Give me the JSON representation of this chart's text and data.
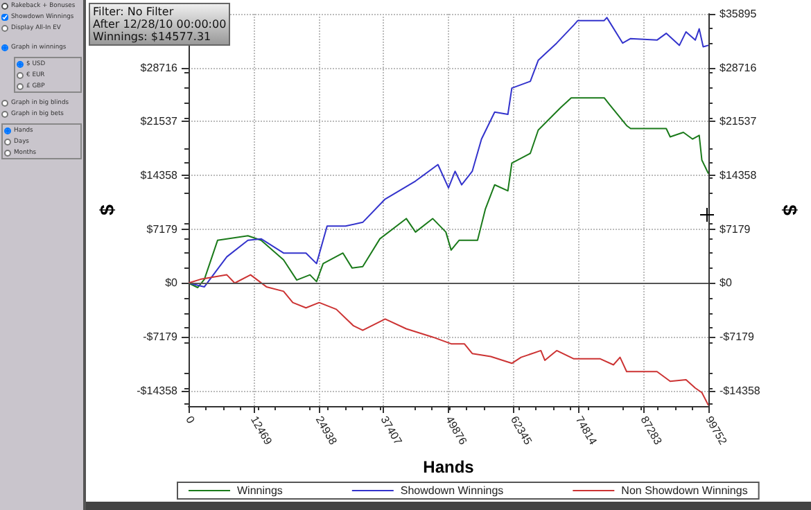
{
  "chart_data": {
    "type": "line",
    "xlabel": "Hands",
    "ylabel": "$",
    "y2label": "$",
    "annotations": [
      "Filter: No Filter",
      "After 12/28/10 00:00:00",
      "Winnings: $14577.31",
      "Rakeback + Bonuses",
      "Showdown Winnings",
      "Display All-In EV",
      "Graph in winnings",
      "$ USD",
      "€ EUR",
      "£ GBP",
      "Graph in big blinds",
      "Graph in big bets",
      "Hands",
      "Days",
      "Months"
    ],
    "xlim": [
      0,
      99752
    ],
    "xticks": [
      0,
      12469,
      24938,
      37407,
      49876,
      62345,
      74814,
      87283,
      99752
    ],
    "ylim": [
      -16400,
      35895
    ],
    "yticks": [
      {
        "value": -14358,
        "label": "-$14358"
      },
      {
        "value": -7179,
        "label": "-$7179"
      },
      {
        "value": 0,
        "label": "$0"
      },
      {
        "value": 7179,
        "label": "$7179"
      },
      {
        "value": 14358,
        "label": "$14358"
      },
      {
        "value": 21537,
        "label": "$21537"
      },
      {
        "value": 28716,
        "label": "$28716"
      },
      {
        "value": 35895,
        "label": null
      }
    ],
    "y2lim": [
      -16400,
      35895
    ],
    "y2ticks": [
      {
        "value": -14358,
        "label": "-$14358"
      },
      {
        "value": -7179,
        "label": "-$7179"
      },
      {
        "value": 0,
        "label": "$0"
      },
      {
        "value": 7179,
        "label": "$7179"
      },
      {
        "value": 14358,
        "label": "$14358"
      },
      {
        "value": 21537,
        "label": "$21537"
      },
      {
        "value": 28716,
        "label": "$28716"
      },
      {
        "value": 35895,
        "label": "$35895"
      }
    ],
    "grid": true,
    "legend": "bottom",
    "marker": "none",
    "line_style": "solid",
    "ref_lines": [
      {
        "axis": "y",
        "value": 0,
        "color": "#555555"
      }
    ],
    "series": [
      {
        "name": "Winnings",
        "color": "#1a7a1a",
        "x": [
          0,
          1772,
          3038,
          5570,
          11394,
          13926,
          18230,
          20762,
          23294,
          24560,
          25826,
          29624,
          31397,
          33422,
          36714,
          41778,
          43550,
          46842,
          49374,
          50387,
          51906,
          55451,
          56970,
          58742,
          61274,
          62034,
          65579,
          67098,
          71402,
          73428,
          79758,
          80771,
          84062,
          84822,
          91658,
          92418,
          94950,
          96722,
          97988,
          98494,
          99752
        ],
        "values": [
          0,
          -600,
          500,
          5700,
          6300,
          5700,
          3100,
          400,
          1100,
          200,
          2600,
          4000,
          2000,
          2200,
          5900,
          8600,
          6800,
          8600,
          6800,
          4400,
          5700,
          5700,
          9900,
          13100,
          12300,
          16000,
          17300,
          20400,
          23400,
          24700,
          24700,
          23800,
          21000,
          20600,
          20600,
          19500,
          20100,
          19200,
          19700,
          16400,
          14600
        ]
      },
      {
        "name": "Showdown Winnings",
        "color": "#3333cc",
        "x": [
          0,
          3038,
          7343,
          11394,
          13926,
          18230,
          22535,
          24560,
          26586,
          30131,
          33422,
          37727,
          43550,
          47855,
          49880,
          51146,
          52412,
          54438,
          56210,
          58742,
          61274,
          62034,
          65579,
          67098,
          70643,
          73934,
          74694,
          79758,
          80264,
          83303,
          84822,
          89886,
          91658,
          94190,
          95456,
          97229,
          97988,
          98748,
          99752
        ],
        "values": [
          0,
          -500,
          3500,
          5700,
          5900,
          4000,
          4000,
          2600,
          7600,
          7600,
          8100,
          11200,
          13600,
          15800,
          12700,
          14900,
          13100,
          14900,
          19200,
          22800,
          22500,
          26000,
          26900,
          29700,
          32000,
          34400,
          35000,
          35000,
          35400,
          32000,
          32600,
          32400,
          33300,
          31700,
          33500,
          32400,
          33900,
          31500,
          31700
        ]
      },
      {
        "name": "Non Showdown Winnings",
        "color": "#cc3333",
        "x": [
          0,
          2279,
          7343,
          8862,
          11900,
          14939,
          18230,
          20003,
          22535,
          25067,
          28358,
          31650,
          33422,
          37727,
          41778,
          46842,
          50387,
          52919,
          54438,
          57983,
          62034,
          63806,
          67604,
          68364,
          70643,
          73934,
          78998,
          81530,
          82796,
          84062,
          89886,
          92418,
          95456,
          97229,
          98494,
          99752
        ],
        "values": [
          0,
          500,
          1100,
          0,
          1100,
          -500,
          -1100,
          -2600,
          -3300,
          -2600,
          -3500,
          -5700,
          -6300,
          -4800,
          -6100,
          -7200,
          -8100,
          -8100,
          -9400,
          -9800,
          -10700,
          -9900,
          -9000,
          -10300,
          -9000,
          -10100,
          -10100,
          -10900,
          -9900,
          -11800,
          -11800,
          -13100,
          -12900,
          -14000,
          -14600,
          -16300
        ]
      }
    ]
  }
}
